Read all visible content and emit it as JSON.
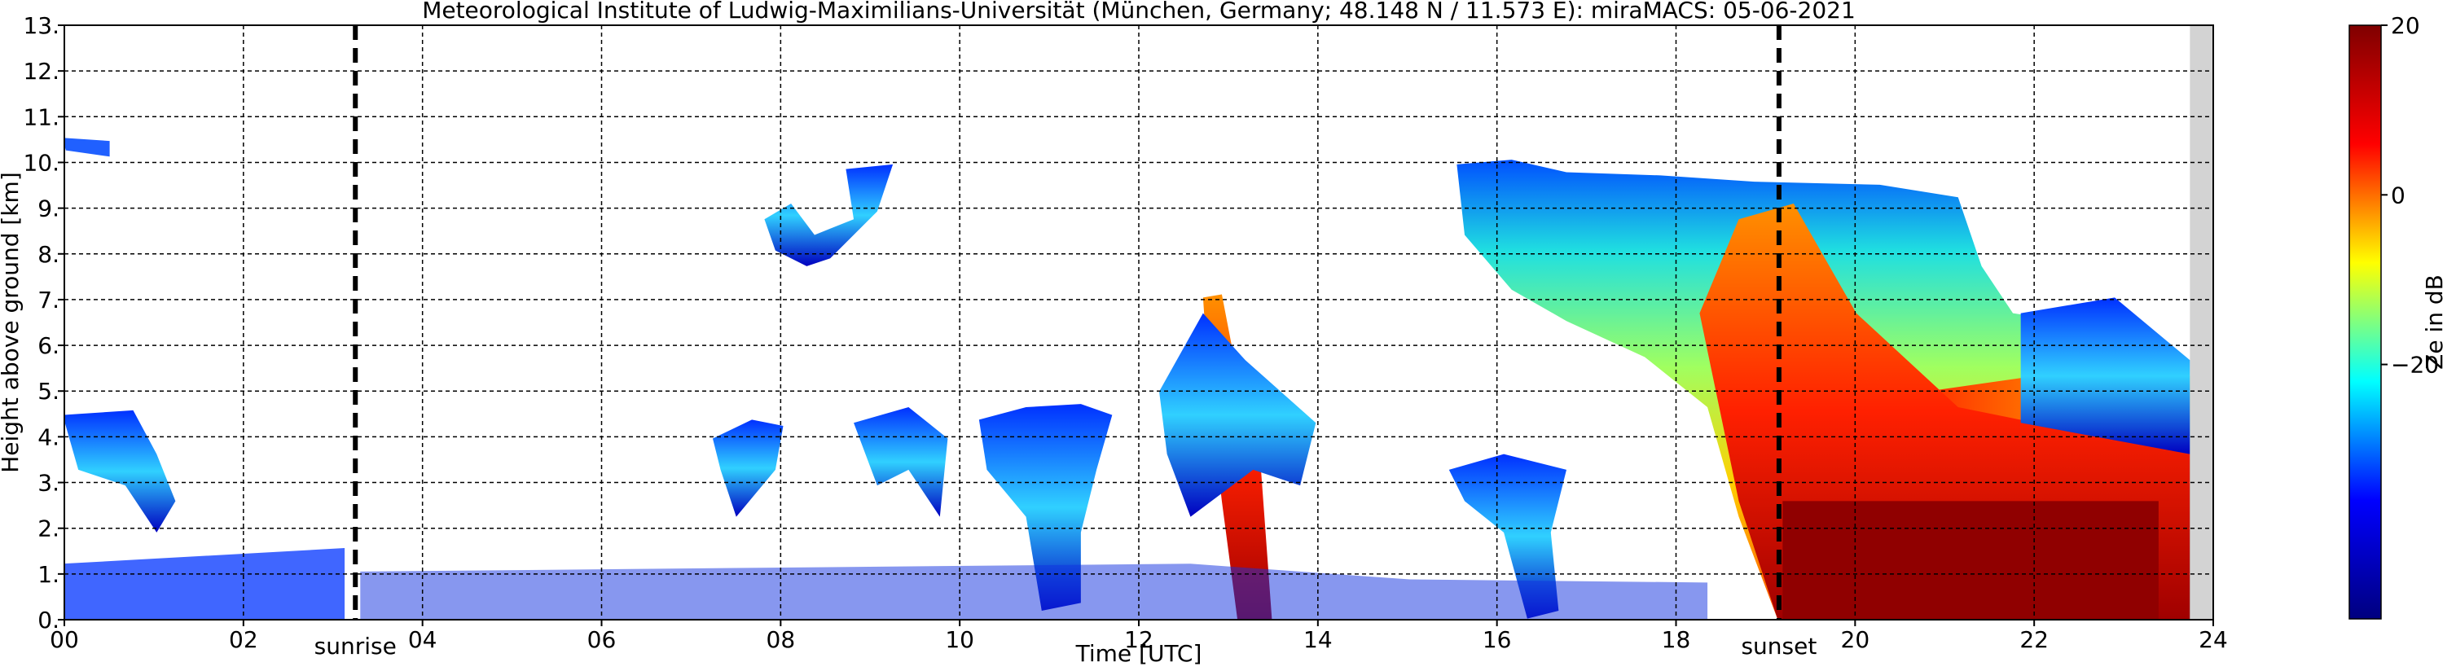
{
  "chart_data": {
    "type": "heatmap",
    "title": "Meteorological Institute of Ludwig-Maximilians-Universität (München, Germany; 48.148 N / 11.573 E):    miraMACS: 05-06-2021",
    "xlabel": "Time [UTC]",
    "ylabel": "Height above ground [km]",
    "xlim": [
      0,
      24
    ],
    "xticks": [
      {
        "value": 0,
        "label": "00"
      },
      {
        "value": 2,
        "label": "02"
      },
      {
        "value": 4,
        "label": "04"
      },
      {
        "value": 6,
        "label": "06"
      },
      {
        "value": 8,
        "label": "08"
      },
      10,
      12,
      14,
      16,
      18,
      20,
      22,
      24
    ],
    "ylim": [
      0,
      13
    ],
    "yticks": [
      {
        "value": 0,
        "label": "0."
      },
      {
        "value": 1,
        "label": "1."
      },
      {
        "value": 2,
        "label": "2."
      },
      {
        "value": 3,
        "label": "3."
      },
      {
        "value": 4,
        "label": "4."
      },
      {
        "value": 5,
        "label": "5."
      },
      {
        "value": 6,
        "label": "6."
      },
      {
        "value": 7,
        "label": "7."
      },
      {
        "value": 8,
        "label": "8."
      },
      {
        "value": 9,
        "label": "9."
      },
      {
        "value": 10,
        "label": "10."
      },
      {
        "value": 11,
        "label": "11."
      },
      {
        "value": 12,
        "label": "12."
      },
      {
        "value": 13,
        "label": "13."
      }
    ],
    "grid": true,
    "annotations": [
      {
        "label": "sunrise",
        "x": 3.25
      },
      {
        "label": "sunset",
        "x": 19.15
      }
    ],
    "colorbar": {
      "label": "Ze in dB",
      "clim": [
        -50,
        20
      ],
      "ticks": [
        20,
        0,
        {
          "value": -20,
          "label": "−20"
        }
      ],
      "colors": [
        "#00007f",
        "#0000ff",
        "#00ffff",
        "#ffff00",
        "#ff0000",
        "#7f0000"
      ]
    }
  }
}
